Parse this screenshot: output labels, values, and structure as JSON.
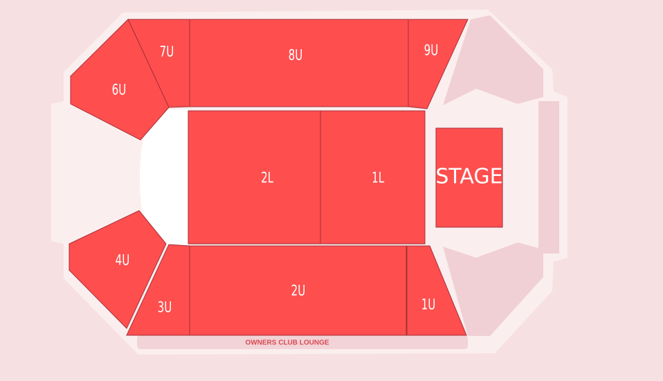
{
  "sections": [
    {
      "id": "1L",
      "label": "1L"
    },
    {
      "id": "2L",
      "label": "2L"
    },
    {
      "id": "1U",
      "label": "1U"
    },
    {
      "id": "2U",
      "label": "2U"
    },
    {
      "id": "3U",
      "label": "3U"
    },
    {
      "id": "4U",
      "label": "4U"
    },
    {
      "id": "6U",
      "label": "6U"
    },
    {
      "id": "7U",
      "label": "7U"
    },
    {
      "id": "8U",
      "label": "8U"
    },
    {
      "id": "9U",
      "label": "9U"
    }
  ],
  "stage": {
    "label": "STAGE"
  },
  "lounge": {
    "label": "OWNERS CLUB LOUNGE"
  },
  "colors": {
    "available": "#fe4e4e",
    "background": "#f6e0e2",
    "outline": "#fbeeee",
    "inactive": "#f0d0d4",
    "floor": "#ffffff"
  }
}
